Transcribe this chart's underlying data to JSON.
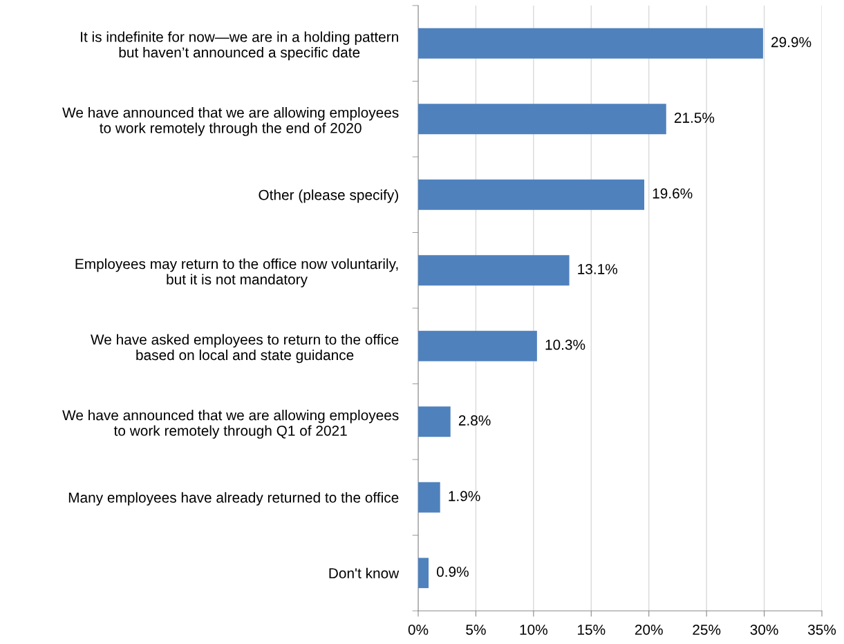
{
  "chart_data": {
    "type": "bar",
    "orientation": "horizontal",
    "categories": [
      "It is indefinite for now—we are in a holding pattern\nbut haven’t announced a specific date",
      "We have announced that we are allowing employees\nto work remotely through the end of 2020",
      "Other (please specify)",
      "Employees may return to the office now voluntarily,\nbut it is not mandatory",
      "We have asked employees to return to the office\nbased on local and state guidance",
      "We have announced that we are allowing employees\nto work remotely through Q1 of 2021",
      "Many employees have already returned to the office",
      "Don't know"
    ],
    "values": [
      29.9,
      21.5,
      19.6,
      13.1,
      10.3,
      2.8,
      1.9,
      0.9
    ],
    "value_labels": [
      "29.9%",
      "21.5%",
      "19.6%",
      "13.1%",
      "10.3%",
      "2.8%",
      "1.9%",
      "0.9%"
    ],
    "color": "#4f81bd",
    "xlim": [
      0,
      35
    ],
    "xticks": [
      {
        "value": 0,
        "label": "0%"
      },
      {
        "value": 5,
        "label": "5%"
      },
      {
        "value": 10,
        "label": "10%"
      },
      {
        "value": 15,
        "label": "15%"
      },
      {
        "value": 20,
        "label": "20%"
      },
      {
        "value": 25,
        "label": "25%"
      },
      {
        "value": 30,
        "label": "30%"
      },
      {
        "value": 35,
        "label": "35%"
      }
    ],
    "grid": "x"
  }
}
